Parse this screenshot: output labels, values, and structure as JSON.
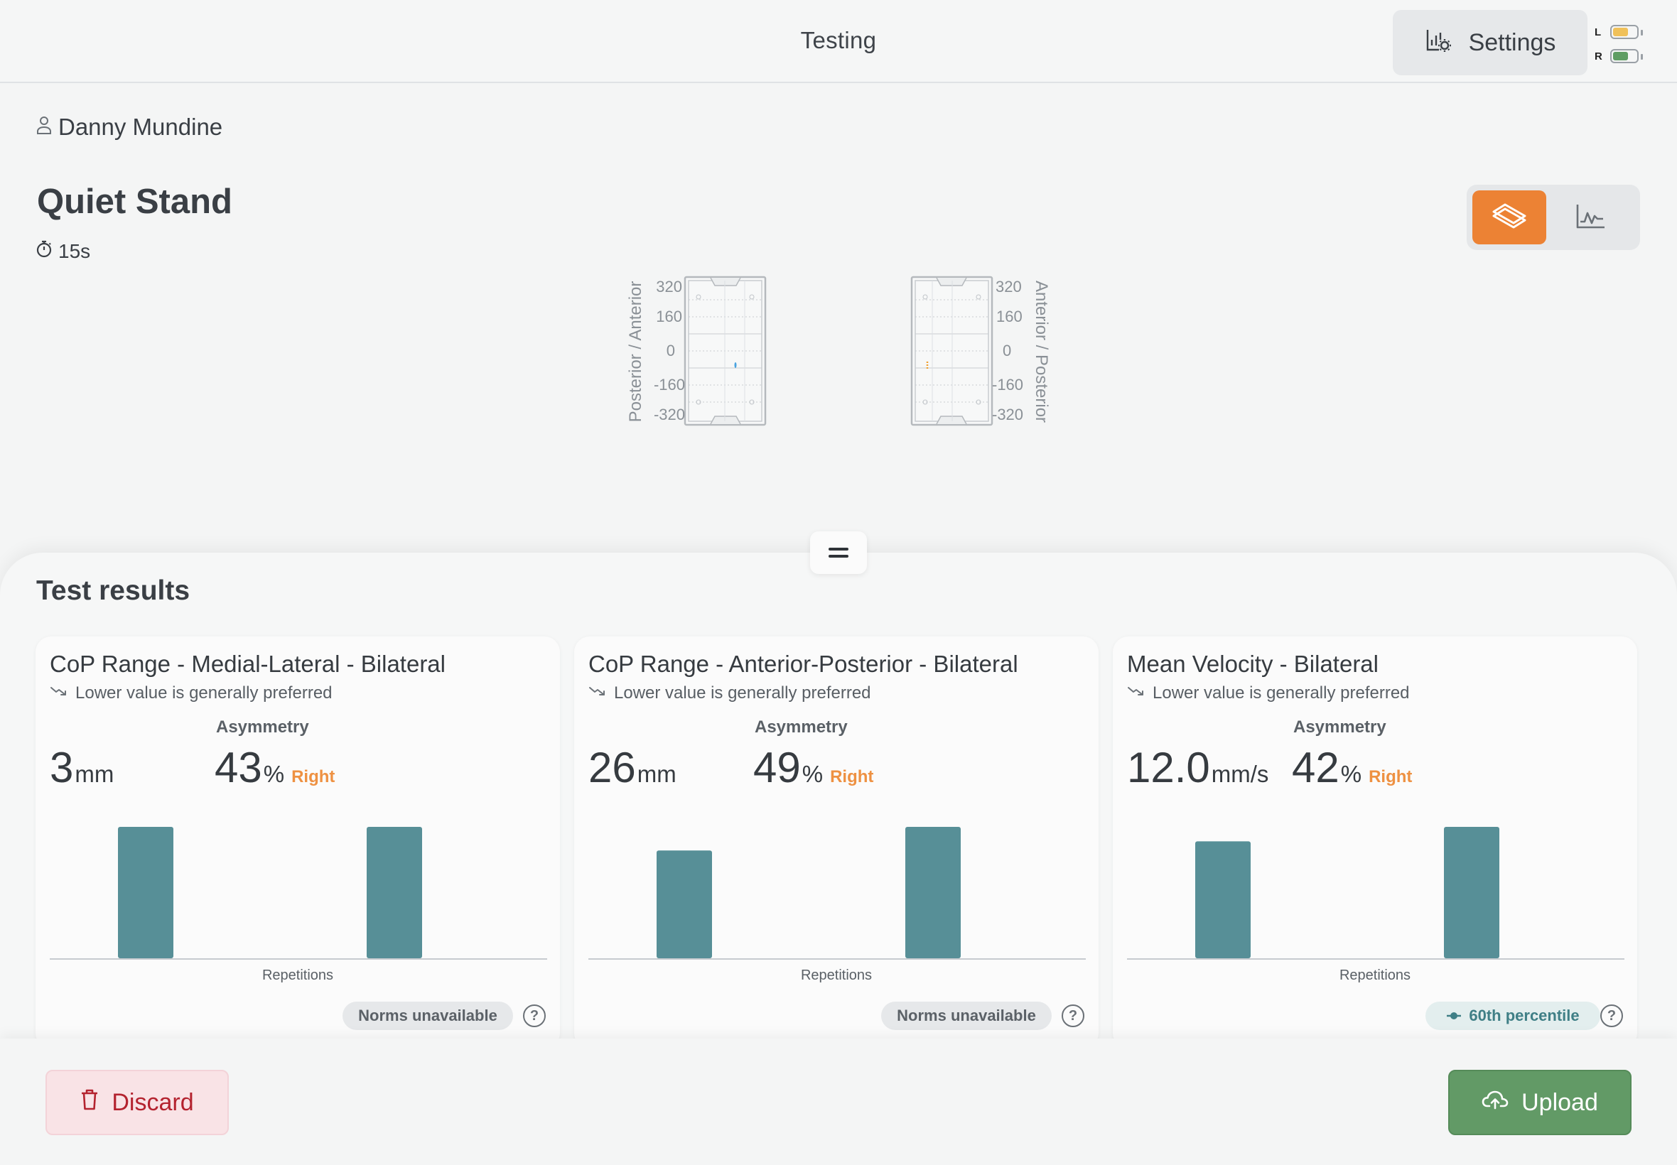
{
  "header": {
    "title": "Testing",
    "settings_label": "Settings",
    "batteries": [
      {
        "label": "L",
        "color": "#f0c15a",
        "level": 0.65
      },
      {
        "label": "R",
        "color": "#5f9d63",
        "level": 0.65
      }
    ]
  },
  "subject": {
    "name": "Danny Mundine",
    "test_name": "Quiet Stand",
    "duration": "15s"
  },
  "view_toggle": {
    "active": "plates",
    "options": [
      "plates-icon",
      "trace-chart-icon"
    ],
    "accent": "#ec8234"
  },
  "plates": {
    "left_axis_label": "Posterior / Anterior",
    "right_axis_label": "Anterior / Posterior",
    "ticks": [
      "320",
      "160",
      "0",
      "-160",
      "-320"
    ],
    "left_trace_color": "#4aa3e0",
    "right_trace_color": "#f0a030"
  },
  "results": {
    "title": "Test results",
    "cards": [
      {
        "title": "CoP Range - Medial-Lateral - Bilateral",
        "subtitle": "Lower value is generally preferred",
        "value": "3",
        "unit": "mm",
        "asym_label": "Asymmetry",
        "asym_value": "43",
        "asym_unit": "%",
        "asym_side": "Right",
        "xlabel": "Repetitions",
        "bars": [
          1.0,
          1.0
        ],
        "norm": "Norms unavailable",
        "norm_type": "unavailable"
      },
      {
        "title": "CoP Range - Anterior-Posterior - Bilateral",
        "subtitle": "Lower value is generally preferred",
        "value": "26",
        "unit": "mm",
        "asym_label": "Asymmetry",
        "asym_value": "49",
        "asym_unit": "%",
        "asym_side": "Right",
        "xlabel": "Repetitions",
        "bars": [
          0.82,
          1.0
        ],
        "norm": "Norms unavailable",
        "norm_type": "unavailable"
      },
      {
        "title": "Mean Velocity - Bilateral",
        "subtitle": "Lower value is generally preferred",
        "value": "12.0",
        "unit": "mm/s",
        "asym_label": "Asymmetry",
        "asym_value": "42",
        "asym_unit": "%",
        "asym_side": "Right",
        "xlabel": "Repetitions",
        "bars": [
          0.89,
          1.0
        ],
        "norm": "60th percentile",
        "norm_type": "percentile"
      }
    ],
    "bar_color": "#578f97"
  },
  "footer": {
    "discard_label": "Discard",
    "upload_label": "Upload"
  }
}
